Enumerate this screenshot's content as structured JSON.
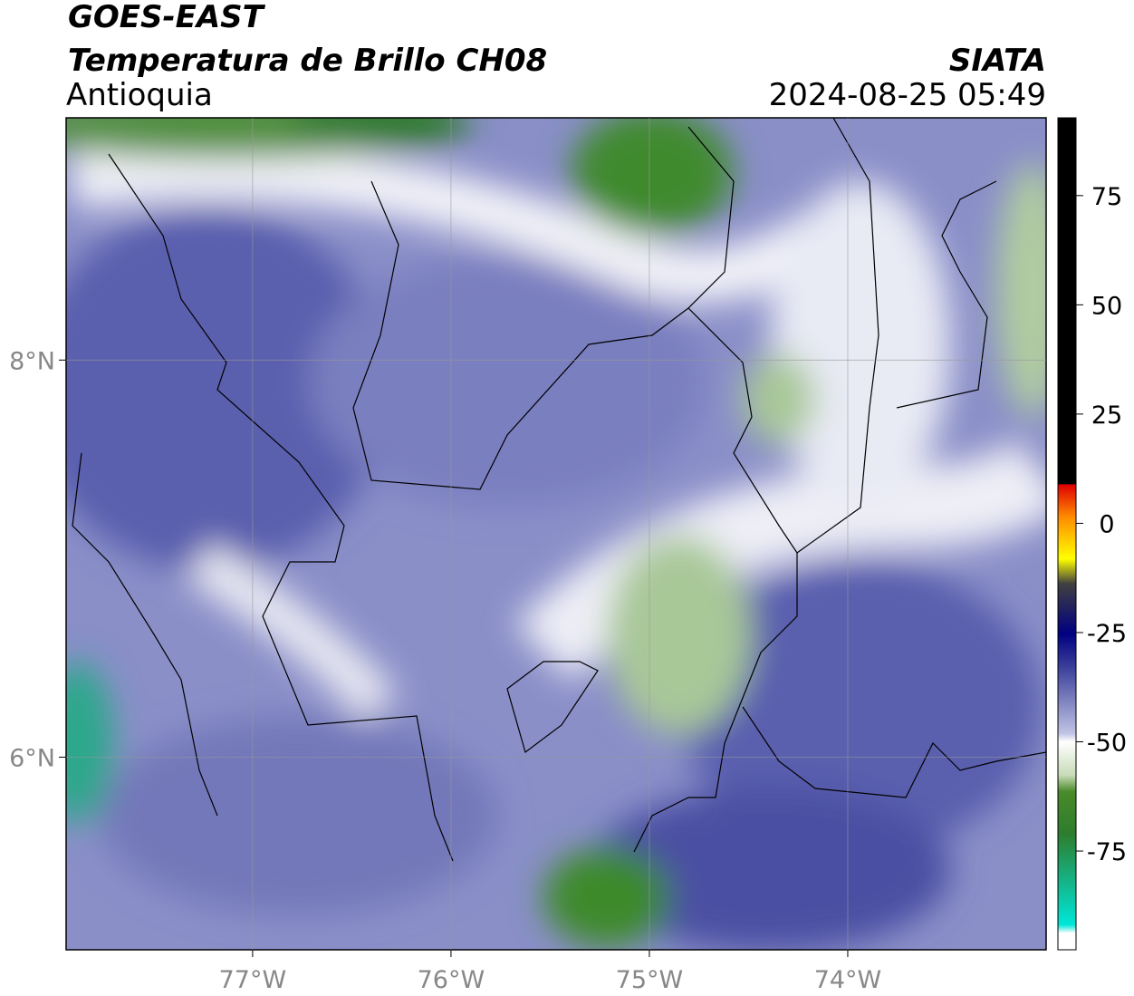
{
  "header": {
    "satellite": "GOES-EAST",
    "product": "Temperatura de Brillo CH08",
    "region": "Antioquia",
    "source": "SIATA",
    "datetime": "2024-08-25 05:49"
  },
  "map": {
    "xlim": [
      -77.94,
      -73.0
    ],
    "ylim": [
      5.03,
      9.22
    ],
    "xticks": [
      {
        "value": -77,
        "label": "77°W"
      },
      {
        "value": -76,
        "label": "76°W"
      },
      {
        "value": -75,
        "label": "75°W"
      },
      {
        "value": -74,
        "label": "74°W"
      }
    ],
    "yticks": [
      {
        "value": 8,
        "label": "8°N"
      },
      {
        "value": 6,
        "label": "6°N"
      }
    ],
    "grid": true
  },
  "colorbar": {
    "lim": [
      -97.6,
      92.8
    ],
    "ticks": [
      75,
      50,
      25,
      0,
      -25,
      -50,
      -75
    ]
  }
}
